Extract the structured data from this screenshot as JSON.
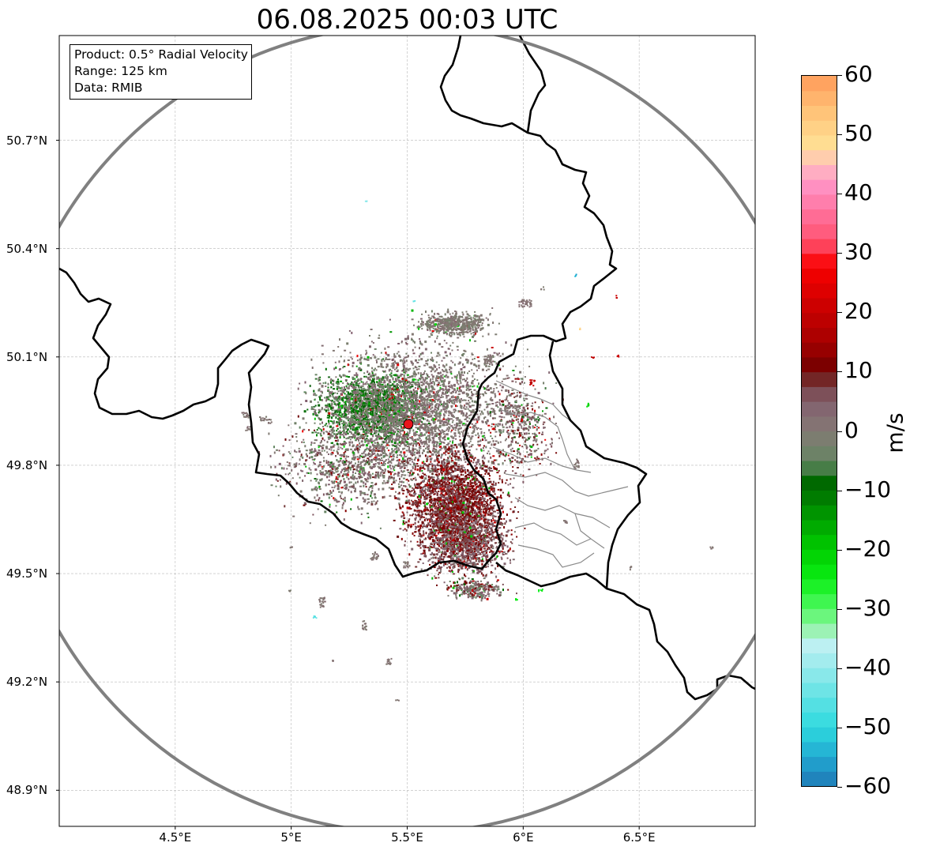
{
  "title": "06.08.2025 00:03 UTC",
  "map": {
    "lon_range": [
      4.0,
      7.0
    ],
    "lat_range": [
      48.8,
      50.99
    ],
    "lon_ticks": [
      {
        "value": 4.5,
        "label": "4.5°E"
      },
      {
        "value": 5.0,
        "label": "5°E"
      },
      {
        "value": 5.5,
        "label": "5.5°E"
      },
      {
        "value": 6.0,
        "label": "6°E"
      },
      {
        "value": 6.5,
        "label": "6.5°E"
      }
    ],
    "lat_ticks": [
      {
        "value": 50.7,
        "label": "50.7°N"
      },
      {
        "value": 50.4,
        "label": "50.4°N"
      },
      {
        "value": 50.1,
        "label": "50.1°N"
      },
      {
        "value": 49.8,
        "label": "49.8°N"
      },
      {
        "value": 49.5,
        "label": "49.5°N"
      },
      {
        "value": 49.2,
        "label": "49.2°N"
      },
      {
        "value": 48.9,
        "label": "48.9°N"
      }
    ],
    "radar_site": {
      "lon": 5.505,
      "lat": 49.914,
      "marker_color": "#e8141b"
    },
    "range_ring_color": "#808080",
    "grid": true
  },
  "info": {
    "product": "Product: 0.5° Radial Velocity",
    "range": "Range: 125 km",
    "source": "Data: RMIB"
  },
  "colorbar": {
    "unit": "m/s",
    "min": -60,
    "max": 60,
    "ticks": [
      {
        "value": 60,
        "label": "60"
      },
      {
        "value": 50,
        "label": "50"
      },
      {
        "value": 40,
        "label": "40"
      },
      {
        "value": 30,
        "label": "30"
      },
      {
        "value": 20,
        "label": "20"
      },
      {
        "value": 10,
        "label": "10"
      },
      {
        "value": 0,
        "label": "0"
      },
      {
        "value": -10,
        "label": "−10"
      },
      {
        "value": -20,
        "label": "−20"
      },
      {
        "value": -30,
        "label": "−30"
      },
      {
        "value": -40,
        "label": "−40"
      },
      {
        "value": -50,
        "label": "−50"
      },
      {
        "value": -60,
        "label": "−60"
      }
    ]
  }
}
